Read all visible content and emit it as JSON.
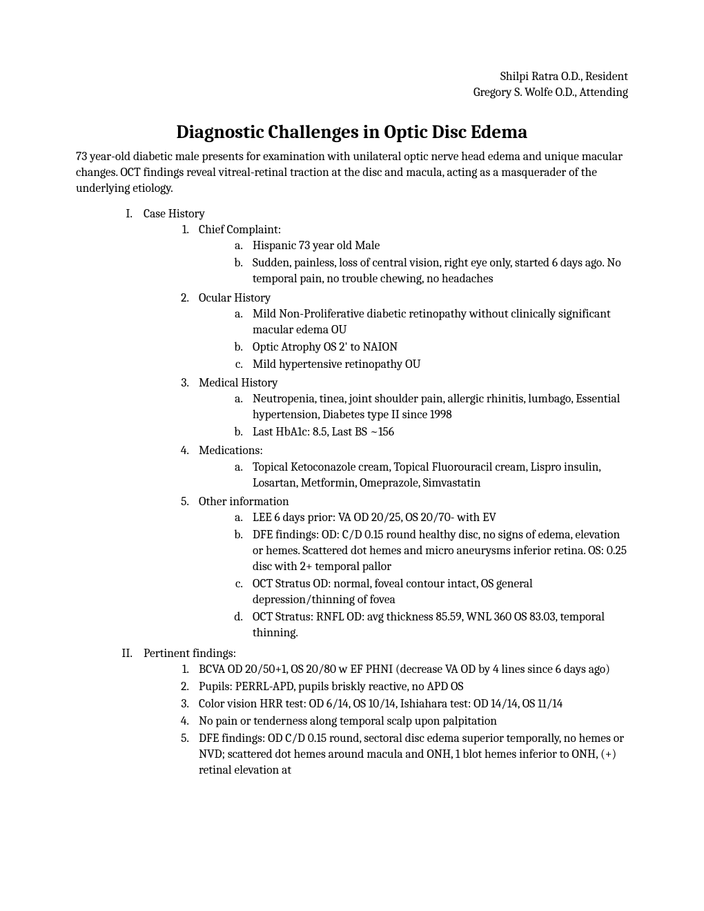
{
  "header": {
    "line1": "Shilpi Ratra O.D., Resident",
    "line2": "Gregory S. Wolfe O.D., Attending"
  },
  "title": "Diagnostic Challenges in Optic Disc Edema",
  "intro": "73 year-old diabetic male presents for examination with unilateral optic nerve head edema and unique macular changes. OCT findings reveal vitreal-retinal traction at the disc and macula, acting as a masquerader of the underlying etiology.",
  "sections": {
    "I": {
      "marker": "I.",
      "label": "Case History",
      "items": {
        "1": {
          "marker": "1.",
          "label": "Chief Complaint:",
          "sub": {
            "a": {
              "marker": "a.",
              "text": "Hispanic 73 year old Male"
            },
            "b": {
              "marker": "b.",
              "text": "Sudden, painless, loss of central vision, right eye only, started 6 days ago. No temporal pain, no trouble chewing, no headaches"
            }
          }
        },
        "2": {
          "marker": "2.",
          "label": "Ocular History",
          "sub": {
            "a": {
              "marker": "a.",
              "text": "Mild Non-Proliferative diabetic retinopathy without clinically significant macular edema OU"
            },
            "b": {
              "marker": "b.",
              "text": "Optic Atrophy OS 2' to NAION"
            },
            "c": {
              "marker": "c.",
              "text": "Mild hypertensive retinopathy OU"
            }
          }
        },
        "3": {
          "marker": "3.",
          "label": "Medical History",
          "sub": {
            "a": {
              "marker": "a.",
              "text": "Neutropenia, tinea, joint shoulder pain, allergic rhinitis, lumbago, Essential hypertension, Diabetes type II since 1998"
            },
            "b": {
              "marker": "b.",
              "text": "Last HbA1c: 8.5, Last BS ~156"
            }
          }
        },
        "4": {
          "marker": "4.",
          "label": "Medications:",
          "sub": {
            "a": {
              "marker": "a.",
              "text": "Topical Ketoconazole cream, Topical Fluorouracil cream, Lispro insulin, Losartan, Metformin, Omeprazole, Simvastatin"
            }
          }
        },
        "5": {
          "marker": "5.",
          "label": "Other information",
          "sub": {
            "a": {
              "marker": "a.",
              "text": "LEE 6 days prior: VA OD 20/25, OS 20/70- with EV"
            },
            "b": {
              "marker": "b.",
              "text": "DFE findings: OD: C/D 0.15 round healthy disc, no signs of edema, elevation or hemes. Scattered dot hemes and micro aneurysms inferior retina. OS: 0.25 disc with 2+ temporal pallor"
            },
            "c": {
              "marker": "c.",
              "text": "OCT Stratus OD: normal, foveal contour intact, OS general depression/thinning of fovea"
            },
            "d": {
              "marker": "d.",
              "text": "OCT Stratus: RNFL OD: avg thickness 85.59, WNL 360 OS 83.03, temporal thinning."
            }
          }
        }
      }
    },
    "II": {
      "marker": "II.",
      "label": "Pertinent findings:",
      "items": {
        "1": {
          "marker": "1.",
          "label": "BCVA OD 20/50+1, OS 20/80 w EF PHNI  (decrease VA OD by 4 lines since 6 days ago)"
        },
        "2": {
          "marker": "2.",
          "label": "Pupils: PERRL-APD, pupils briskly reactive, no APD OS"
        },
        "3": {
          "marker": "3.",
          "label": "Color vision HRR test: OD 6/14, OS 10/14, Ishiahara test: OD 14/14, OS 11/14"
        },
        "4": {
          "marker": "4.",
          "label": "No pain or tenderness along temporal scalp upon palpitation"
        },
        "5": {
          "marker": "5.",
          "label": "DFE findings: OD C/D 0.15 round, sectoral disc edema superior temporally, no hemes or NVD; scattered dot hemes around macula and ONH, 1 blot hemes inferior to ONH, (+) retinal elevation at"
        }
      }
    }
  }
}
